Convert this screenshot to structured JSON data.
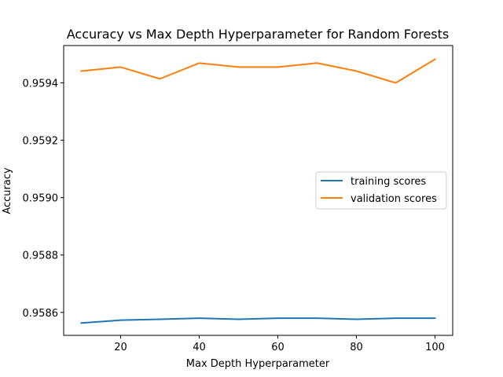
{
  "chart_data": {
    "type": "line",
    "title": "Accuracy vs Max Depth Hyperparameter for Random Forests",
    "xlabel": "Max Depth Hyperparameter",
    "ylabel": "Accuracy",
    "x": [
      10,
      20,
      30,
      40,
      50,
      60,
      70,
      80,
      90,
      100
    ],
    "xlim": [
      5.5,
      104.5
    ],
    "ylim": [
      0.95852,
      0.95953
    ],
    "xticks": [
      20,
      40,
      60,
      80,
      100
    ],
    "xtick_labels": [
      "20",
      "40",
      "60",
      "80",
      "100"
    ],
    "yticks": [
      0.9586,
      0.9588,
      0.959,
      0.9592,
      0.9594
    ],
    "ytick_labels": [
      "0.9586",
      "0.9588",
      "0.9590",
      "0.9592",
      "0.9594"
    ],
    "grid": false,
    "legend_position": "center-right",
    "series": [
      {
        "name": "training scores",
        "color": "#1f77b4",
        "values": [
          0.958563,
          0.958573,
          0.958576,
          0.95858,
          0.958576,
          0.95858,
          0.95858,
          0.958576,
          0.95858,
          0.95858
        ]
      },
      {
        "name": "validation scores",
        "color": "#ff7f0e",
        "values": [
          0.959441,
          0.959455,
          0.959414,
          0.959469,
          0.959455,
          0.959455,
          0.959469,
          0.959441,
          0.9594,
          0.959482
        ]
      }
    ]
  }
}
